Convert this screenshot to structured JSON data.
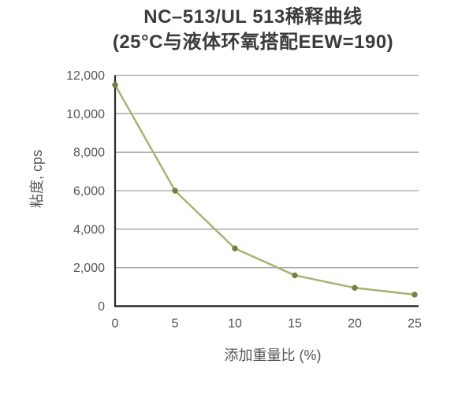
{
  "title": {
    "line1": "NC–513/UL 513稀释曲线",
    "line2": "(25°C与液体环氧搭配EEW=190)"
  },
  "chart_data": {
    "type": "line",
    "title": "NC–513/UL 513稀释曲线 (25°C与液体环氧搭配EEW=190)",
    "xlabel": "添加重量比 (%)",
    "ylabel": "粘度, cps",
    "x": [
      0,
      5,
      10,
      15,
      20,
      25
    ],
    "values": [
      11500,
      6000,
      3000,
      1600,
      950,
      600
    ],
    "xlim": [
      0,
      25
    ],
    "ylim": [
      0,
      12000
    ],
    "xticks": [
      0,
      5,
      10,
      15,
      20,
      25
    ],
    "xtick_labels": [
      "0",
      "5",
      "10",
      "15",
      "20",
      "25"
    ],
    "yticks": [
      0,
      2000,
      4000,
      6000,
      8000,
      10000,
      12000
    ],
    "ytick_labels": [
      "0",
      "2,000",
      "4,000",
      "6,000",
      "8,000",
      "10,000",
      "12,000"
    ],
    "grid": true,
    "legend": false,
    "colors": {
      "line": "#a8b371",
      "marker": "#73823c",
      "grid": "#a3a3a3",
      "axis": "#2b2b2b",
      "tick_text": "#575757",
      "title_text": "#3b3b3b"
    }
  }
}
